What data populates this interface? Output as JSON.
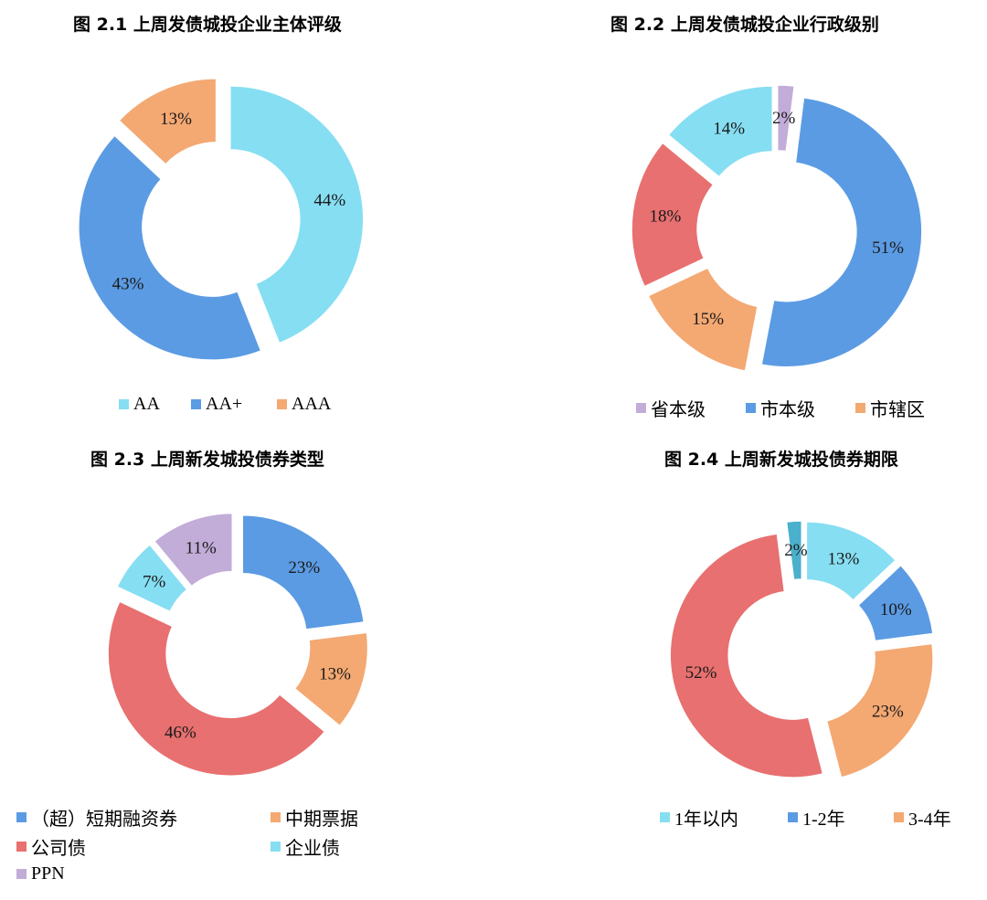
{
  "chart_data": [
    {
      "type": "donut",
      "title": "图 2.1  上周发债城投企业主体评级",
      "slices": [
        {
          "label": "AA",
          "value": 44,
          "color": "#86DEF2",
          "text": "44%"
        },
        {
          "label": "AA+",
          "value": 43,
          "color": "#5B9BE3",
          "text": "43%"
        },
        {
          "label": "AAA",
          "value": 13,
          "color": "#F4A872",
          "text": "13%"
        }
      ],
      "legend": [
        {
          "label": "AA",
          "color": "#86DEF2"
        },
        {
          "label": "AA+",
          "color": "#5B9BE3"
        },
        {
          "label": "AAA",
          "color": "#F4A872"
        }
      ]
    },
    {
      "type": "donut",
      "title": "图 2.2  上周发债城投企业行政级别",
      "slices": [
        {
          "label": "省本级",
          "value": 2,
          "color": "#C2ACD8",
          "text": "2%"
        },
        {
          "label": "市本级",
          "value": 51,
          "color": "#5B9BE3",
          "text": "51%"
        },
        {
          "label": "市辖区",
          "value": 15,
          "color": "#F4A872",
          "text": "15%"
        },
        {
          "label": "",
          "value": 18,
          "color": "#E87070",
          "text": "18%"
        },
        {
          "label": "",
          "value": 14,
          "color": "#86DEF2",
          "text": "14%"
        }
      ],
      "legend": [
        {
          "label": "省本级",
          "color": "#C2ACD8"
        },
        {
          "label": "市本级",
          "color": "#5B9BE3"
        },
        {
          "label": "市辖区",
          "color": "#F4A872"
        }
      ]
    },
    {
      "type": "donut",
      "title": "图 2.3  上周新发城投债券类型",
      "slices": [
        {
          "label": "（超）短期融资券",
          "value": 23,
          "color": "#5B9BE3",
          "text": "23%"
        },
        {
          "label": "中期票据",
          "value": 13,
          "color": "#F4A872",
          "text": "13%"
        },
        {
          "label": "公司债",
          "value": 46,
          "color": "#E87070",
          "text": "46%"
        },
        {
          "label": "企业债",
          "value": 7,
          "color": "#86DEF2",
          "text": "7%"
        },
        {
          "label": "PPN",
          "value": 11,
          "color": "#C2ACD8",
          "text": "11%"
        }
      ],
      "legend": [
        {
          "label": "（超）短期融资券",
          "color": "#5B9BE3"
        },
        {
          "label": "中期票据",
          "color": "#F4A872"
        },
        {
          "label": "公司债",
          "color": "#E87070"
        },
        {
          "label": "企业债",
          "color": "#86DEF2"
        },
        {
          "label": "PPN",
          "color": "#C2ACD8"
        }
      ]
    },
    {
      "type": "donut",
      "title": "图 2.4  上周新发城投债券期限",
      "slices": [
        {
          "label": "1年以内",
          "value": 13,
          "color": "#86DEF2",
          "text": "13%"
        },
        {
          "label": "1-2年",
          "value": 10,
          "color": "#5B9BE3",
          "text": "10%"
        },
        {
          "label": "3-4年",
          "value": 23,
          "color": "#F4A872",
          "text": "23%"
        },
        {
          "label": "",
          "value": 52,
          "color": "#E87070",
          "text": "52%"
        },
        {
          "label": "",
          "value": 2,
          "color": "#4BB0CC",
          "text": "2%"
        }
      ],
      "legend": [
        {
          "label": "1年以内",
          "color": "#86DEF2"
        },
        {
          "label": "1-2年",
          "color": "#5B9BE3"
        },
        {
          "label": "3-4年",
          "color": "#F4A872"
        }
      ]
    }
  ]
}
